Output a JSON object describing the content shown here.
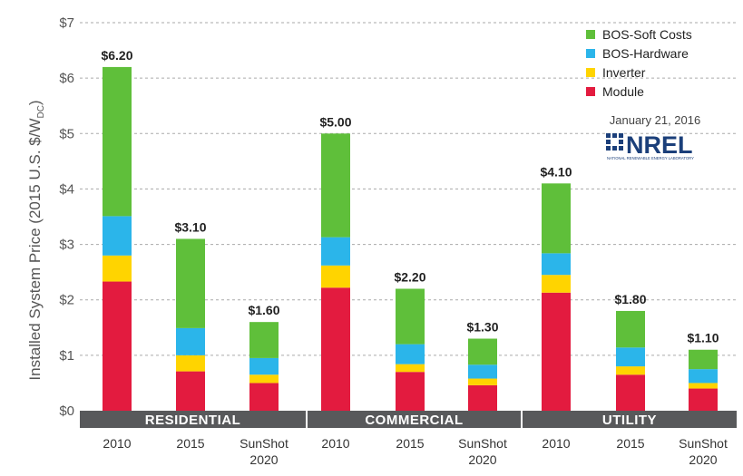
{
  "chart_data": {
    "type": "bar",
    "stacked": true,
    "ylabel": "Installed System Price (2015 U.S. $/W",
    "ylabel_subscript": "DC",
    "ylabel_close": ")",
    "ylim": [
      0,
      7
    ],
    "yticks": [
      0,
      1,
      2,
      3,
      4,
      5,
      6,
      7
    ],
    "ytick_labels": [
      "$0",
      "$1",
      "$2",
      "$3",
      "$4",
      "$5",
      "$6",
      "$7"
    ],
    "grid": true,
    "legend_position": "top-right",
    "groups": [
      "RESIDENTIAL",
      "COMMERCIAL",
      "UTILITY"
    ],
    "categories": [
      {
        "group": 0,
        "line1": "2010",
        "line2": ""
      },
      {
        "group": 0,
        "line1": "2015",
        "line2": ""
      },
      {
        "group": 0,
        "line1": "SunShot",
        "line2": "2020"
      },
      {
        "group": 1,
        "line1": "2010",
        "line2": ""
      },
      {
        "group": 1,
        "line1": "2015",
        "line2": ""
      },
      {
        "group": 1,
        "line1": "SunShot",
        "line2": "2020"
      },
      {
        "group": 2,
        "line1": "2010",
        "line2": ""
      },
      {
        "group": 2,
        "line1": "2015",
        "line2": ""
      },
      {
        "group": 2,
        "line1": "SunShot",
        "line2": "2020"
      }
    ],
    "series": [
      {
        "name": "Module",
        "color": "#e31b3f",
        "values": [
          2.33,
          0.71,
          0.5,
          2.22,
          0.7,
          0.46,
          2.13,
          0.65,
          0.4
        ]
      },
      {
        "name": "Inverter",
        "color": "#ffd400",
        "values": [
          0.47,
          0.29,
          0.15,
          0.4,
          0.14,
          0.12,
          0.32,
          0.15,
          0.1
        ]
      },
      {
        "name": "BOS-Hardware",
        "color": "#2bb5ea",
        "values": [
          0.71,
          0.49,
          0.3,
          0.51,
          0.36,
          0.25,
          0.39,
          0.34,
          0.25
        ]
      },
      {
        "name": "BOS-Soft Costs",
        "color": "#5fbf3a",
        "values": [
          2.69,
          1.61,
          0.65,
          1.87,
          1.0,
          0.47,
          1.26,
          0.66,
          0.35
        ]
      }
    ],
    "legend_order": [
      "BOS-Soft Costs",
      "BOS-Hardware",
      "Inverter",
      "Module"
    ],
    "totals": [
      6.2,
      3.1,
      1.6,
      5.0,
      2.2,
      1.3,
      4.1,
      1.8,
      1.1
    ],
    "total_labels": [
      "$6.20",
      "$3.10",
      "$1.60",
      "$5.00",
      "$2.20",
      "$1.30",
      "$4.10",
      "$1.80",
      "$1.10"
    ]
  },
  "annotation": {
    "date": "January 21, 2016",
    "logo_text": "NREL",
    "logo_subtext": "NATIONAL RENEWABLE ENERGY LABORATORY"
  },
  "colors": {
    "grid": "#aaaaaa",
    "group_band": "#58595b",
    "axis_text": "#555555",
    "logo": "#1b3f7a"
  }
}
